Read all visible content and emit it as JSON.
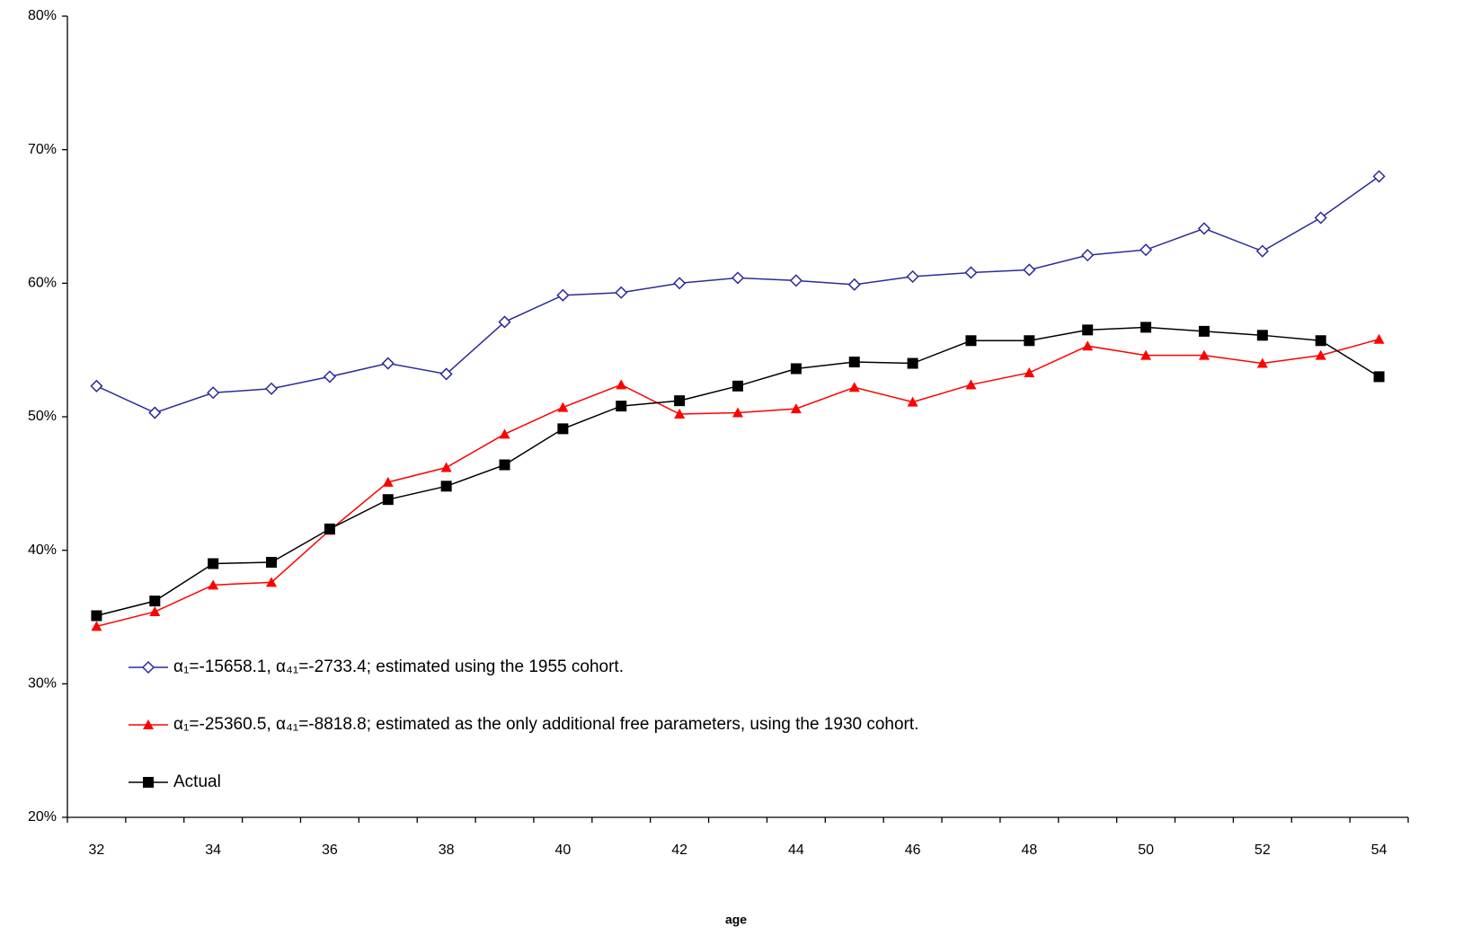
{
  "chart_data": {
    "type": "line",
    "x_label": "age",
    "categories": [
      32,
      null,
      34,
      null,
      36,
      null,
      38,
      null,
      40,
      null,
      42,
      null,
      44,
      null,
      46,
      null,
      48,
      null,
      50,
      null,
      52,
      null,
      54
    ],
    "ylim": [
      20,
      80
    ],
    "yticks": [
      {
        "value": 20,
        "label": "20%"
      },
      {
        "value": 30,
        "label": "30%"
      },
      {
        "value": 40,
        "label": "40%"
      },
      {
        "value": 50,
        "label": "50%"
      },
      {
        "value": 60,
        "label": "60%"
      },
      {
        "value": 70,
        "label": "70%"
      },
      {
        "value": 80,
        "label": "80%"
      }
    ],
    "grid": false,
    "legend": "inside-bottom-left",
    "series": [
      {
        "name": "α₁=-15658.1, α₄₁=-2733.4; estimated using the 1955 cohort.",
        "color": "#2b2b9a",
        "marker": "diamond",
        "values": [
          52.3,
          50.3,
          51.8,
          52.1,
          53.0,
          54.0,
          53.2,
          57.1,
          59.1,
          59.3,
          60.0,
          60.4,
          60.2,
          59.9,
          60.5,
          60.8,
          61.0,
          62.1,
          62.5,
          64.1,
          62.4,
          64.9,
          68.0
        ]
      },
      {
        "name": "α₁=-25360.5, α₄₁=-8818.8; estimated as the only additional free parameters, using the 1930 cohort.",
        "color": "#ff0000",
        "marker": "triangle",
        "values": [
          34.3,
          35.4,
          37.4,
          37.6,
          41.5,
          45.1,
          46.2,
          48.7,
          50.7,
          52.4,
          50.2,
          50.3,
          50.6,
          52.2,
          51.1,
          52.4,
          53.3,
          55.3,
          54.6,
          54.6,
          54.0,
          54.6,
          55.8
        ]
      },
      {
        "name": "Actual",
        "color": "#000000",
        "marker": "square",
        "values": [
          35.1,
          36.2,
          39.0,
          39.1,
          41.6,
          43.8,
          44.8,
          46.4,
          49.1,
          50.8,
          51.2,
          52.3,
          53.6,
          54.1,
          54.0,
          55.7,
          55.7,
          56.5,
          56.7,
          56.4,
          56.1,
          55.7,
          53.0
        ]
      }
    ]
  }
}
